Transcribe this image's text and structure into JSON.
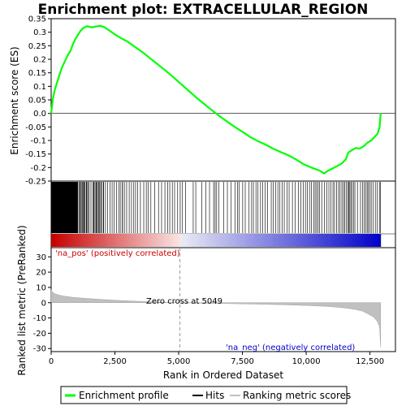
{
  "chart_data": [
    {
      "type": "line",
      "title": "Enrichment plot: EXTRACELLULAR_REGION",
      "ylabel": "Enrichment score (ES)",
      "xlim": [
        0,
        13500
      ],
      "ylim": [
        -0.25,
        0.35
      ],
      "yticks": [
        0.35,
        0.3,
        0.25,
        0.2,
        0.15,
        0.1,
        0.05,
        0.0,
        -0.05,
        -0.1,
        -0.15,
        -0.2,
        -0.25
      ],
      "yticklabels": [
        "0.35",
        "0.3",
        "0.25",
        "0.2",
        "0.15",
        "0.1",
        "0.05",
        "0.0",
        "-0.05",
        "-0.1",
        "-0.15",
        "-0.2",
        "-0.25"
      ],
      "series": [
        {
          "name": "Enrichment profile",
          "color": "#00ff00",
          "points": [
            [
              0,
              0.0
            ],
            [
              60,
              0.05
            ],
            [
              150,
              0.09
            ],
            [
              250,
              0.12
            ],
            [
              350,
              0.15
            ],
            [
              450,
              0.175
            ],
            [
              550,
              0.195
            ],
            [
              650,
              0.215
            ],
            [
              750,
              0.23
            ],
            [
              850,
              0.255
            ],
            [
              950,
              0.275
            ],
            [
              1050,
              0.29
            ],
            [
              1150,
              0.305
            ],
            [
              1250,
              0.315
            ],
            [
              1400,
              0.322
            ],
            [
              1600,
              0.318
            ],
            [
              1800,
              0.322
            ],
            [
              1950,
              0.323
            ],
            [
              2100,
              0.318
            ],
            [
              2300,
              0.305
            ],
            [
              2500,
              0.292
            ],
            [
              2700,
              0.28
            ],
            [
              3000,
              0.265
            ],
            [
              3300,
              0.245
            ],
            [
              3600,
              0.225
            ],
            [
              3900,
              0.202
            ],
            [
              4200,
              0.18
            ],
            [
              4500,
              0.157
            ],
            [
              4800,
              0.133
            ],
            [
              5100,
              0.108
            ],
            [
              5400,
              0.083
            ],
            [
              5700,
              0.058
            ],
            [
              6000,
              0.035
            ],
            [
              6300,
              0.012
            ],
            [
              6600,
              -0.01
            ],
            [
              6900,
              -0.03
            ],
            [
              7200,
              -0.05
            ],
            [
              7500,
              -0.068
            ],
            [
              7800,
              -0.087
            ],
            [
              8100,
              -0.102
            ],
            [
              8400,
              -0.115
            ],
            [
              8700,
              -0.13
            ],
            [
              9000,
              -0.143
            ],
            [
              9300,
              -0.155
            ],
            [
              9600,
              -0.17
            ],
            [
              9900,
              -0.188
            ],
            [
              10200,
              -0.2
            ],
            [
              10500,
              -0.21
            ],
            [
              10700,
              -0.222
            ],
            [
              10850,
              -0.212
            ],
            [
              11000,
              -0.205
            ],
            [
              11200,
              -0.195
            ],
            [
              11400,
              -0.185
            ],
            [
              11550,
              -0.17
            ],
            [
              11650,
              -0.145
            ],
            [
              11800,
              -0.135
            ],
            [
              11950,
              -0.128
            ],
            [
              12100,
              -0.13
            ],
            [
              12250,
              -0.122
            ],
            [
              12400,
              -0.108
            ],
            [
              12550,
              -0.1
            ],
            [
              12700,
              -0.085
            ],
            [
              12800,
              -0.075
            ],
            [
              12880,
              -0.05
            ],
            [
              12920,
              0.0
            ]
          ]
        }
      ]
    },
    {
      "type": "bar",
      "title": "",
      "legend": [
        "Hits"
      ],
      "hit_color": "#000000",
      "hits": [
        [
          10,
          1050
        ],
        [
          1080,
          1120
        ],
        [
          1150,
          1180
        ],
        [
          1200,
          1230
        ],
        [
          1250,
          1290
        ],
        [
          1310,
          1340
        ],
        [
          1370,
          1400
        ],
        [
          1420,
          1450
        ],
        [
          1480,
          1500
        ],
        [
          1550,
          1570
        ],
        [
          1620,
          1640
        ],
        [
          1660,
          1690
        ],
        [
          1710,
          1730
        ],
        [
          1750,
          1780
        ],
        [
          1800,
          1830
        ],
        [
          1850,
          1870
        ],
        [
          1890,
          1910
        ],
        [
          1930,
          1960
        ],
        [
          1990,
          2010
        ],
        [
          2040,
          2070
        ],
        [
          2120,
          2140
        ],
        [
          2200,
          2220
        ],
        [
          2300,
          2320
        ],
        [
          2380,
          2400
        ],
        [
          2460,
          2480
        ],
        [
          2560,
          2580
        ],
        [
          2640,
          2660
        ],
        [
          2700,
          2720
        ],
        [
          2780,
          2810
        ],
        [
          2860,
          2880
        ],
        [
          2950,
          2970
        ],
        [
          3050,
          3070
        ],
        [
          3140,
          3160
        ],
        [
          3230,
          3250
        ],
        [
          3300,
          3320
        ],
        [
          3380,
          3400
        ],
        [
          3490,
          3510
        ],
        [
          3620,
          3640
        ],
        [
          3720,
          3740
        ],
        [
          3800,
          3820
        ],
        [
          3900,
          3920
        ],
        [
          4050,
          4070
        ],
        [
          4200,
          4220
        ],
        [
          4320,
          4340
        ],
        [
          4450,
          4470
        ],
        [
          4560,
          4580
        ],
        [
          4640,
          4660
        ],
        [
          4740,
          4760
        ],
        [
          4830,
          4850
        ],
        [
          4950,
          4970
        ],
        [
          5050,
          5070
        ],
        [
          5140,
          5160
        ],
        [
          5260,
          5280
        ],
        [
          5560,
          5580
        ],
        [
          5660,
          5680
        ],
        [
          5900,
          5920
        ],
        [
          6060,
          6080
        ],
        [
          6200,
          6220
        ],
        [
          6360,
          6380
        ],
        [
          6420,
          6440
        ],
        [
          6480,
          6500
        ],
        [
          6560,
          6580
        ],
        [
          6760,
          6780
        ],
        [
          6900,
          6920
        ],
        [
          7050,
          7070
        ],
        [
          7200,
          7220
        ],
        [
          7300,
          7320
        ],
        [
          7360,
          7380
        ],
        [
          7500,
          7520
        ],
        [
          7600,
          7620
        ],
        [
          7750,
          7770
        ],
        [
          7850,
          7870
        ],
        [
          7920,
          7940
        ],
        [
          8020,
          8040
        ],
        [
          8100,
          8120
        ],
        [
          8200,
          8220
        ],
        [
          8280,
          8300
        ],
        [
          8380,
          8400
        ],
        [
          8480,
          8500
        ],
        [
          8620,
          8640
        ],
        [
          8700,
          8720
        ],
        [
          8800,
          8820
        ],
        [
          8880,
          8900
        ],
        [
          8960,
          8980
        ],
        [
          9050,
          9070
        ],
        [
          9130,
          9150
        ],
        [
          9240,
          9260
        ],
        [
          9320,
          9340
        ],
        [
          9450,
          9470
        ],
        [
          9560,
          9580
        ],
        [
          9680,
          9700
        ],
        [
          9780,
          9800
        ],
        [
          9880,
          9900
        ],
        [
          9960,
          9980
        ],
        [
          10040,
          10060
        ],
        [
          10120,
          10140
        ],
        [
          10200,
          10220
        ],
        [
          10280,
          10300
        ],
        [
          10340,
          10360
        ],
        [
          10400,
          10420
        ],
        [
          10460,
          10480
        ],
        [
          10520,
          10540
        ],
        [
          10600,
          10620
        ],
        [
          10700,
          10720
        ],
        [
          10800,
          10820
        ],
        [
          10880,
          10900
        ],
        [
          10960,
          10980
        ],
        [
          11040,
          11060
        ],
        [
          11100,
          11120
        ],
        [
          11180,
          11200
        ],
        [
          11260,
          11280
        ],
        [
          11320,
          11340
        ],
        [
          11390,
          11410
        ],
        [
          11450,
          11470
        ],
        [
          11500,
          11520
        ],
        [
          11560,
          11580
        ],
        [
          11620,
          11640
        ],
        [
          11660,
          11680
        ],
        [
          11700,
          11720
        ],
        [
          11740,
          11760
        ],
        [
          11790,
          11810
        ],
        [
          11850,
          11870
        ],
        [
          11900,
          11920
        ],
        [
          12000,
          12020
        ],
        [
          12120,
          12140
        ],
        [
          12200,
          12220
        ],
        [
          12260,
          12280
        ],
        [
          12320,
          12340
        ],
        [
          12380,
          12400
        ],
        [
          12430,
          12450
        ],
        [
          12480,
          12500
        ],
        [
          12540,
          12560
        ],
        [
          12620,
          12640
        ],
        [
          12700,
          12720
        ],
        [
          12780,
          12800
        ],
        [
          12860,
          12880
        ],
        [
          12900,
          12920
        ]
      ]
    },
    {
      "type": "area",
      "title": "",
      "xlabel": "Rank in Ordered Dataset",
      "ylabel": "Ranked list metric (PreRanked)",
      "xlim": [
        0,
        13500
      ],
      "ylim": [
        -32,
        36
      ],
      "xticks": [
        0,
        2500,
        5000,
        7500,
        10000,
        12500
      ],
      "xticklabels": [
        "0",
        "2,500",
        "5,000",
        "7,500",
        "10,000",
        "12,500"
      ],
      "yticks": [
        30,
        20,
        10,
        0,
        -10,
        -20,
        -30
      ],
      "yticklabels": [
        "30",
        "20",
        "10",
        "0",
        "-10",
        "-20",
        "-30"
      ],
      "annotations": {
        "pos": "'na_pos' (positively correlated)",
        "zero": "Zero cross at 5049",
        "neg": "'na_neg' (negatively correlated)"
      },
      "zero_cross": 5049,
      "fill_color": "#c0c0c0",
      "series": [
        {
          "name": "Ranking metric scores",
          "points": [
            [
              0,
              8.5
            ],
            [
              50,
              7.0
            ],
            [
              150,
              5.8
            ],
            [
              300,
              5.0
            ],
            [
              500,
              4.3
            ],
            [
              800,
              3.6
            ],
            [
              1200,
              3.0
            ],
            [
              1700,
              2.4
            ],
            [
              2300,
              1.8
            ],
            [
              3000,
              1.2
            ],
            [
              3800,
              0.6
            ],
            [
              4500,
              0.2
            ],
            [
              5049,
              0.0
            ],
            [
              6000,
              -0.3
            ],
            [
              7000,
              -0.6
            ],
            [
              8000,
              -0.9
            ],
            [
              9000,
              -1.3
            ],
            [
              10000,
              -1.8
            ],
            [
              10800,
              -2.4
            ],
            [
              11400,
              -3.2
            ],
            [
              11900,
              -4.3
            ],
            [
              12200,
              -5.5
            ],
            [
              12450,
              -7.5
            ],
            [
              12650,
              -9.5
            ],
            [
              12800,
              -12.5
            ],
            [
              12880,
              -16.0
            ],
            [
              12920,
              -29.0
            ]
          ]
        }
      ]
    }
  ],
  "legend": {
    "items": [
      {
        "label": "Enrichment profile",
        "color": "#00ff00"
      },
      {
        "label": "Hits",
        "color": "#000000"
      },
      {
        "label": "Ranking metric scores",
        "color": "#c0c0c0"
      }
    ]
  }
}
